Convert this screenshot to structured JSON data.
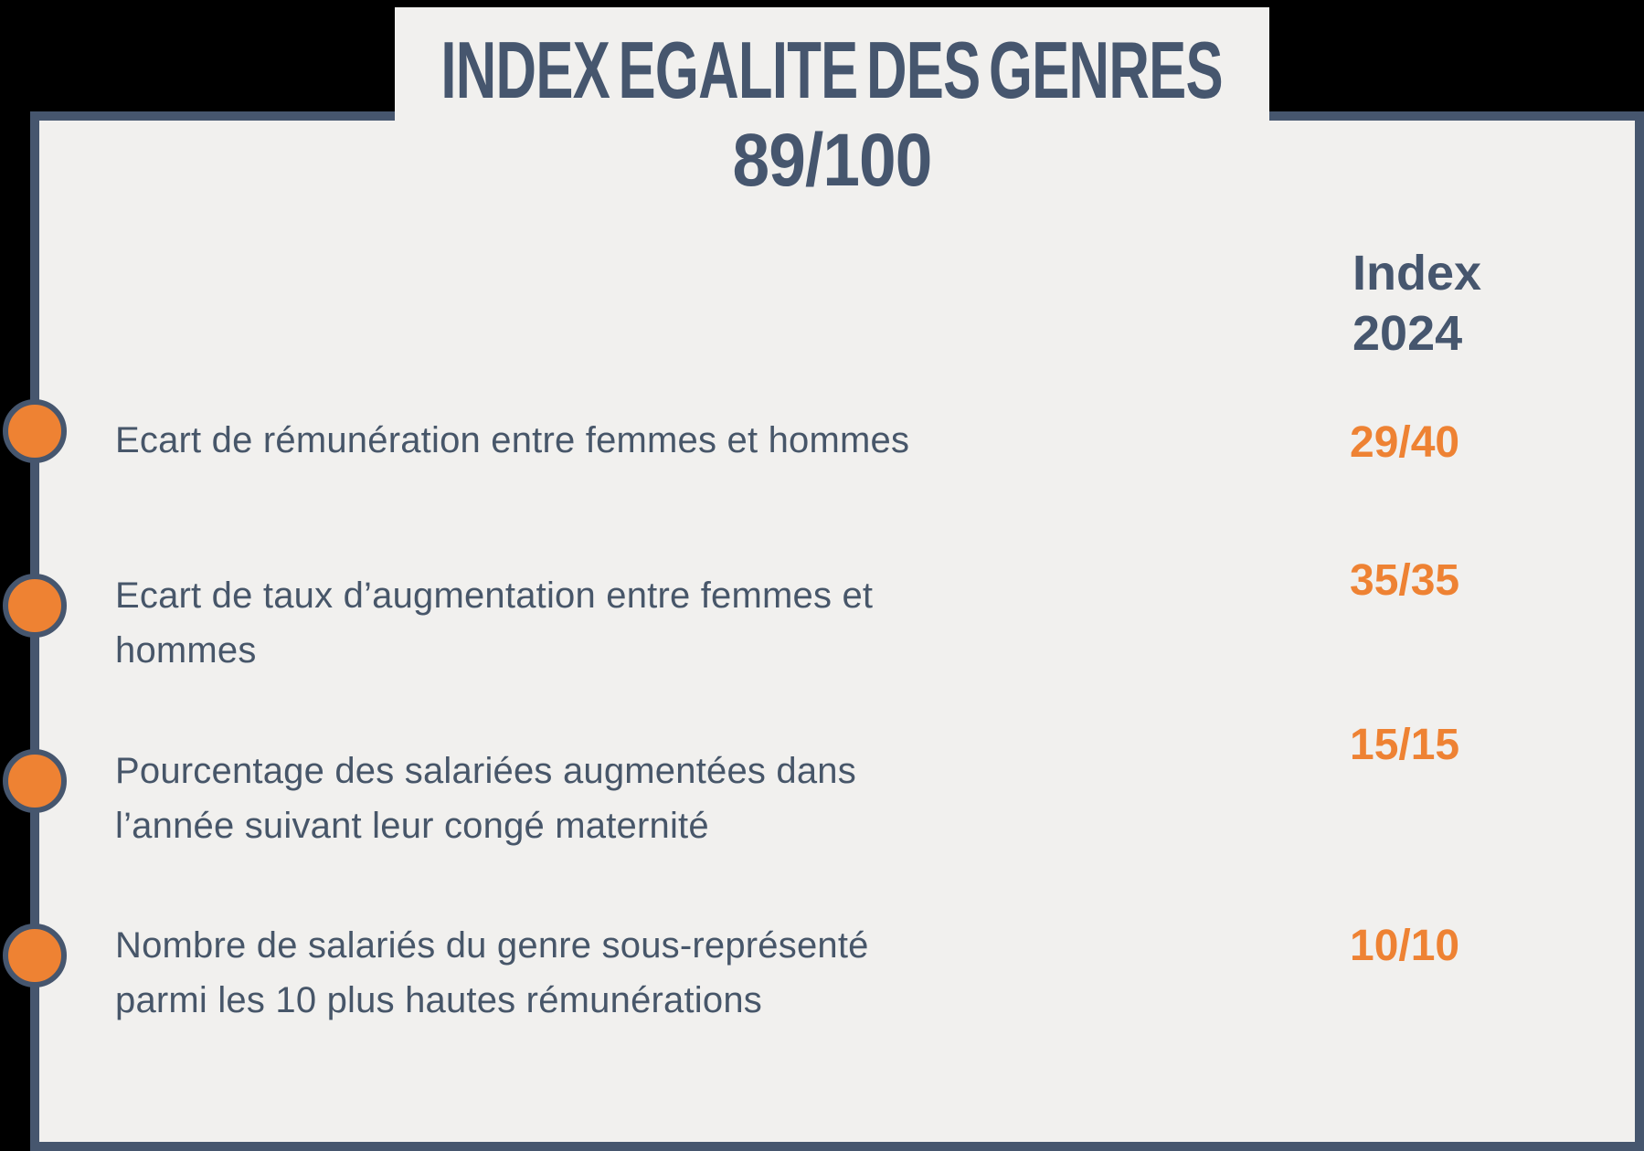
{
  "header": {
    "title": "INDEX EGALITE DES GENRES",
    "score": "89/100"
  },
  "table": {
    "column_header": "Index\n2024",
    "rows": [
      {
        "label": "Ecart de rémunération entre femmes et hommes",
        "value": "29/40"
      },
      {
        "label": "Ecart de taux d’augmentation entre femmes et\nhommes",
        "value": "35/35"
      },
      {
        "label": "Pourcentage des salariées augmentées dans\nl’année suivant leur congé maternité",
        "value": "15/15"
      },
      {
        "label": "Nombre de salariés du genre sous-représenté\nparmi les 10 plus hautes rémunérations",
        "value": "10/10"
      }
    ]
  },
  "icons": {
    "bullet": "orange-circle-icon"
  },
  "colors": {
    "slate": "#46566e",
    "body_text": "#475669",
    "orange": "#ee8233",
    "card_background": "#f1f0ee",
    "page_background": "#000000"
  }
}
